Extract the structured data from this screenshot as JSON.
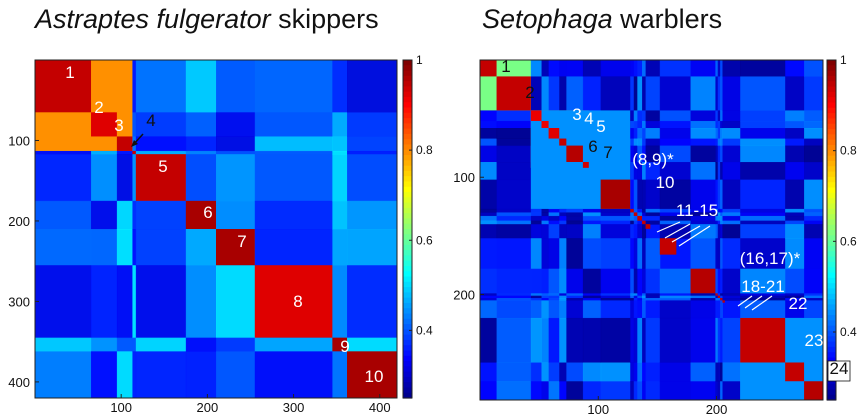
{
  "panels": [
    {
      "title_italic": "Astraptes fulgerator",
      "title_rest": " skippers"
    },
    {
      "title_italic": "Setophaga",
      "title_rest": " warblers"
    }
  ],
  "chart_data": [
    {
      "type": "heatmap",
      "title": "Astraptes fulgerator skippers",
      "n": 420,
      "axis_ticks": [
        100,
        200,
        300,
        400
      ],
      "colorbar": {
        "min": 0.25,
        "max": 1,
        "ticks": [
          0.4,
          0.6,
          0.8,
          1
        ],
        "colormap": "jet"
      },
      "background_value": 0.42,
      "blocks": [
        {
          "label": "1",
          "start": 0,
          "end": 65,
          "value": 0.95
        },
        {
          "label": "2",
          "start": 65,
          "end": 95,
          "value": 0.93
        },
        {
          "label": "3",
          "start": 95,
          "end": 113,
          "value": 0.95
        },
        {
          "label": "4",
          "start": 113,
          "end": 117,
          "value": 0.95
        },
        {
          "label": "5",
          "start": 117,
          "end": 175,
          "value": 0.95
        },
        {
          "label": "6",
          "start": 175,
          "end": 210,
          "value": 0.97
        },
        {
          "label": "7",
          "start": 210,
          "end": 255,
          "value": 0.97
        },
        {
          "label": "8",
          "start": 255,
          "end": 345,
          "value": 0.93
        },
        {
          "label": "9",
          "start": 345,
          "end": 362,
          "value": 0.97
        },
        {
          "label": "10",
          "start": 362,
          "end": 420,
          "value": 0.97
        }
      ],
      "groups": [
        {
          "blocks": [
            "1",
            "2",
            "3"
          ],
          "value": 0.8
        },
        {
          "blocks": [
            "1",
            "2",
            "3",
            "4",
            "5",
            "6",
            "7",
            "8",
            "9",
            "10"
          ],
          "value": 0.44
        }
      ]
    },
    {
      "type": "heatmap",
      "title": "Setophaga warblers",
      "n": 290,
      "axis_ticks": [
        100,
        200
      ],
      "x_ticks": [
        100,
        200
      ],
      "colorbar": {
        "min": 0.25,
        "max": 1,
        "ticks": [
          0.4,
          0.6,
          0.8,
          1
        ],
        "colormap": "jet"
      },
      "background_value": 0.36,
      "blocks": [
        {
          "label": "1",
          "start": 0,
          "end": 14,
          "value": 0.95
        },
        {
          "label": "2",
          "start": 14,
          "end": 43,
          "value": 0.95
        },
        {
          "label": "3",
          "start": 43,
          "end": 52,
          "value": 0.92
        },
        {
          "label": "4",
          "start": 52,
          "end": 58,
          "value": 0.92
        },
        {
          "label": "5",
          "start": 58,
          "end": 67,
          "value": 0.93
        },
        {
          "label": "6",
          "start": 67,
          "end": 73,
          "value": 0.95
        },
        {
          "label": "7",
          "start": 73,
          "end": 87,
          "value": 0.96
        },
        {
          "label": "(8,9)*",
          "start": 87,
          "end": 92,
          "value": 0.94
        },
        {
          "label": "10",
          "start": 102,
          "end": 127,
          "value": 0.97
        },
        {
          "label": "11",
          "start": 127,
          "end": 130,
          "value": 0.95
        },
        {
          "label": "12",
          "start": 130,
          "end": 133,
          "value": 0.95
        },
        {
          "label": "13",
          "start": 133,
          "end": 137,
          "value": 0.95
        },
        {
          "label": "14",
          "start": 137,
          "end": 140,
          "value": 0.95
        },
        {
          "label": "15",
          "start": 140,
          "end": 144,
          "value": 0.95
        },
        {
          "label": "(16,17)*",
          "start": 152,
          "end": 166,
          "value": 0.95
        },
        {
          "label": "",
          "start": 178,
          "end": 199,
          "value": 0.96
        },
        {
          "label": "18",
          "start": 199,
          "end": 201,
          "value": 0.95
        },
        {
          "label": "19",
          "start": 201,
          "end": 203,
          "value": 0.95
        },
        {
          "label": "20",
          "start": 203,
          "end": 205,
          "value": 0.95
        },
        {
          "label": "21",
          "start": 205,
          "end": 207,
          "value": 0.95
        },
        {
          "label": "22",
          "start": 220,
          "end": 258,
          "value": 0.95
        },
        {
          "label": "23",
          "start": 258,
          "end": 274,
          "value": 0.95
        },
        {
          "label": "24",
          "start": 274,
          "end": 290,
          "value": 0.96
        }
      ],
      "groups": [
        {
          "blocks": [
            "1",
            "2"
          ],
          "value": 0.62
        },
        {
          "blocks": [
            "3",
            "4",
            "5",
            "6",
            "7",
            "(8,9)*"
          ],
          "value": 0.68
        },
        {
          "blocks": [
            "6",
            "7"
          ],
          "value": 0.84
        },
        {
          "blocks": [
            "3",
            "4",
            "5",
            "6",
            "7",
            "(8,9)*",
            "10"
          ],
          "value": 0.45
        },
        {
          "blocks": [
            "22",
            "23",
            "24"
          ],
          "value": 0.45
        }
      ]
    }
  ]
}
